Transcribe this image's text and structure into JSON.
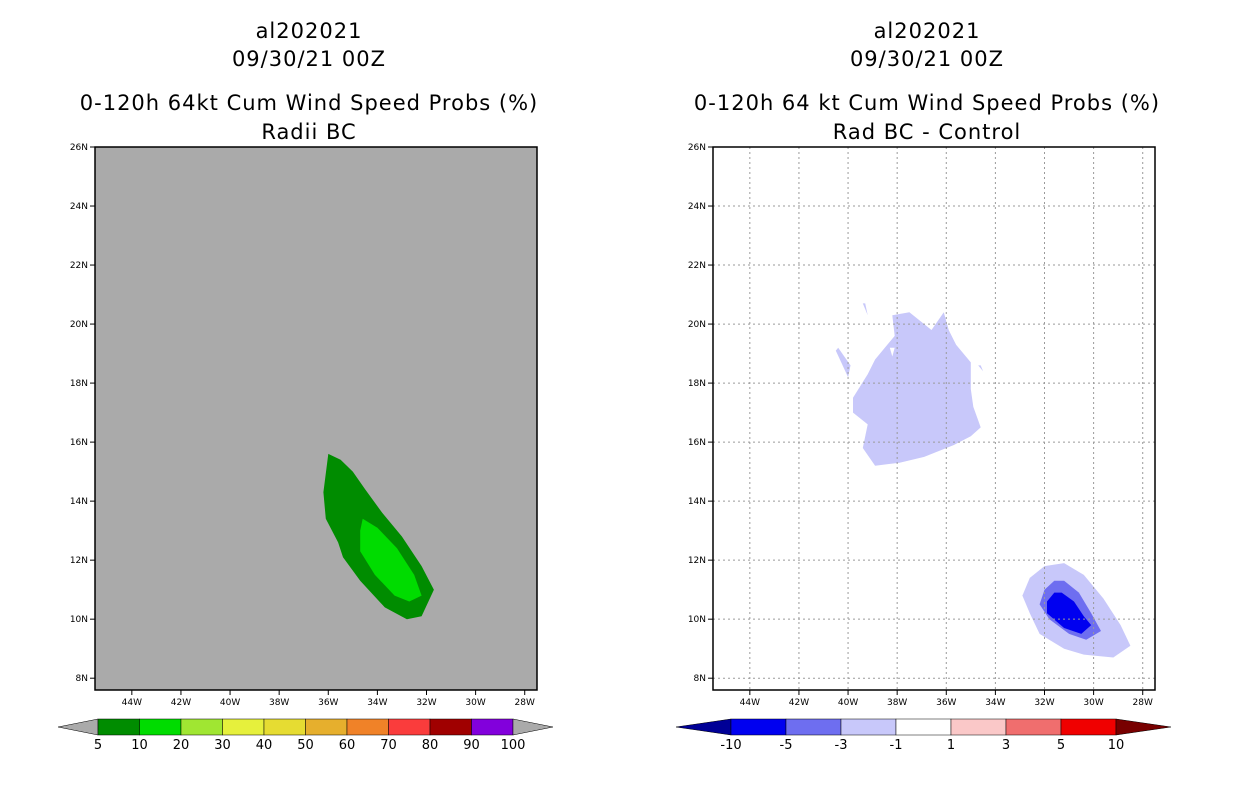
{
  "chart_data": [
    {
      "type": "filled-contour-map",
      "title_line1": "al202021",
      "title_line2": "09/30/21 00Z",
      "title_line3": "0-120h 64kt Cum Wind Speed Probs (%)",
      "title_line4": "Radii BC",
      "xlim": [
        -45.5,
        -27.5
      ],
      "ylim": [
        7.6,
        26
      ],
      "x_ticks": [
        "44W",
        "42W",
        "40W",
        "38W",
        "36W",
        "34W",
        "32W",
        "30W",
        "28W"
      ],
      "y_ticks": [
        "8N",
        "10N",
        "12N",
        "14N",
        "16N",
        "18N",
        "20N",
        "22N",
        "24N",
        "26N"
      ],
      "background_color": "#aaaaaa",
      "grid": false,
      "colorbar": {
        "labels": [
          "5",
          "10",
          "20",
          "30",
          "40",
          "50",
          "60",
          "70",
          "80",
          "90",
          "100"
        ],
        "colors": [
          "#008c00",
          "#00dc00",
          "#a0e632",
          "#e6f03c",
          "#e6dc32",
          "#e6af2d",
          "#f08228",
          "#fa3c3c",
          "#a00000",
          "#8200dc"
        ],
        "under_color": "#aaaaaa",
        "over_color": "#aaaaaa"
      },
      "contours": [
        {
          "level": "5-10",
          "color": "#008c00",
          "polygon": [
            [
              -36,
              15.6
            ],
            [
              -35.5,
              15.4
            ],
            [
              -35,
              15
            ],
            [
              -34.5,
              14.4
            ],
            [
              -33.8,
              13.6
            ],
            [
              -33,
              12.8
            ],
            [
              -32.2,
              11.8
            ],
            [
              -31.7,
              11
            ],
            [
              -32.2,
              10.1
            ],
            [
              -32.8,
              10
            ],
            [
              -33.7,
              10.4
            ],
            [
              -34.7,
              11.3
            ],
            [
              -35.4,
              12.1
            ],
            [
              -35.6,
              12.6
            ],
            [
              -36.1,
              13.4
            ],
            [
              -36.2,
              14.3
            ]
          ]
        },
        {
          "level": "10-20",
          "color": "#00dc00",
          "polygon": [
            [
              -34.6,
              13.4
            ],
            [
              -34,
              13.1
            ],
            [
              -33.2,
              12.4
            ],
            [
              -32.5,
              11.5
            ],
            [
              -32.2,
              10.8
            ],
            [
              -32.7,
              10.6
            ],
            [
              -33.3,
              10.8
            ],
            [
              -34.1,
              11.5
            ],
            [
              -34.7,
              12.3
            ],
            [
              -34.7,
              13
            ]
          ]
        }
      ]
    },
    {
      "type": "filled-contour-map",
      "title_line1": "al202021",
      "title_line2": "09/30/21 00Z",
      "title_line3": "0-120h 64 kt Cum Wind Speed Probs (%)",
      "title_line4": "Rad BC - Control",
      "xlim": [
        -45.5,
        -27.5
      ],
      "ylim": [
        7.6,
        26
      ],
      "x_ticks": [
        "44W",
        "42W",
        "40W",
        "38W",
        "36W",
        "34W",
        "32W",
        "30W",
        "28W"
      ],
      "y_ticks": [
        "8N",
        "10N",
        "12N",
        "14N",
        "16N",
        "18N",
        "20N",
        "22N",
        "24N",
        "26N"
      ],
      "background_color": "#ffffff",
      "grid": true,
      "colorbar": {
        "labels": [
          "-10",
          "-5",
          "-3",
          "-1",
          "1",
          "3",
          "5",
          "10"
        ],
        "colors": [
          "#0000f0",
          "#6e6ef0",
          "#c8c8fa",
          "#ffffff",
          "#fac8c8",
          "#f06e6e",
          "#f00000"
        ],
        "under_color": "#000096",
        "over_color": "#780000"
      },
      "contours": [
        {
          "level": "-3 to -1",
          "color": "#c8c8fa",
          "polygon": [
            [
              -37.5,
              20.4
            ],
            [
              -36.6,
              19.8
            ],
            [
              -36.1,
              20.4
            ],
            [
              -35.9,
              19.8
            ],
            [
              -35.6,
              19.3
            ],
            [
              -35,
              18.7
            ],
            [
              -35,
              17.8
            ],
            [
              -34.9,
              17.2
            ],
            [
              -34.6,
              16.5
            ],
            [
              -35,
              16.2
            ],
            [
              -35.7,
              15.9
            ],
            [
              -36.9,
              15.5
            ],
            [
              -37.9,
              15.3
            ],
            [
              -38.9,
              15.2
            ],
            [
              -39.4,
              15.8
            ],
            [
              -39.2,
              16.6
            ],
            [
              -39.8,
              17
            ],
            [
              -39.8,
              17.5
            ],
            [
              -39.2,
              18.3
            ],
            [
              -38.9,
              18.8
            ],
            [
              -38.1,
              19.6
            ],
            [
              -38.2,
              20.3
            ]
          ]
        },
        {
          "level": "-3 to -1",
          "color": "#c8c8fa",
          "polygon": [
            [
              -40.5,
              19.1
            ],
            [
              -40,
              18.2
            ],
            [
              -39.9,
              18.6
            ],
            [
              -40.4,
              19.2
            ]
          ]
        },
        {
          "level": "-3 to -1",
          "color": "#c8c8fa",
          "polygon": [
            [
              -39.4,
              20.7
            ],
            [
              -39.2,
              20.3
            ],
            [
              -39.3,
              20.7
            ]
          ]
        },
        {
          "level": "-3 to -1",
          "color": "#c8c8fa",
          "polygon": [
            [
              -34.7,
              18.6
            ],
            [
              -34.5,
              18.4
            ],
            [
              -34.6,
              18.6
            ]
          ]
        },
        {
          "level": "-3 to -1",
          "color": "#c8c8fa",
          "polygon": [
            [
              -31.2,
              11.9
            ],
            [
              -30.4,
              11.5
            ],
            [
              -29.6,
              10.7
            ],
            [
              -28.9,
              9.8
            ],
            [
              -28.5,
              9.1
            ],
            [
              -29.2,
              8.7
            ],
            [
              -30.4,
              8.8
            ],
            [
              -31.2,
              9
            ],
            [
              -32.2,
              9.5
            ],
            [
              -32.6,
              10.2
            ],
            [
              -32.9,
              10.8
            ],
            [
              -32.6,
              11.4
            ],
            [
              -32,
              11.8
            ]
          ]
        },
        {
          "level": "-5 to -3",
          "color": "#6e6ef0",
          "polygon": [
            [
              -31.2,
              11.3
            ],
            [
              -30.6,
              10.9
            ],
            [
              -30.1,
              10.2
            ],
            [
              -29.7,
              9.6
            ],
            [
              -30.3,
              9.3
            ],
            [
              -31,
              9.5
            ],
            [
              -31.8,
              10
            ],
            [
              -32.2,
              10.5
            ],
            [
              -32,
              11
            ],
            [
              -31.6,
              11.3
            ]
          ]
        },
        {
          "level": "-10 to -5",
          "color": "#0000f0",
          "polygon": [
            [
              -31.3,
              10.9
            ],
            [
              -30.8,
              10.6
            ],
            [
              -30.4,
              10.1
            ],
            [
              -30.1,
              9.8
            ],
            [
              -30.5,
              9.5
            ],
            [
              -31.2,
              9.7
            ],
            [
              -31.9,
              10.2
            ],
            [
              -31.9,
              10.6
            ],
            [
              -31.6,
              10.9
            ]
          ]
        },
        {
          "level": "-1 to 1",
          "color": "#ffffff",
          "polygon": [
            [
              -38.3,
              19.2
            ],
            [
              -38.2,
              18.9
            ],
            [
              -38.1,
              19.2
            ]
          ]
        }
      ]
    }
  ]
}
